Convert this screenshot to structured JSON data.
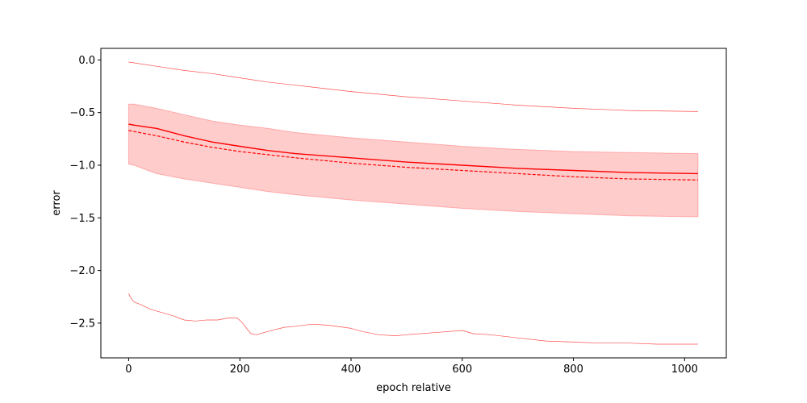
{
  "chart_data": {
    "type": "line",
    "title": "",
    "xlabel": "epoch relative",
    "ylabel": "error",
    "xlim": [
      -50,
      1075
    ],
    "ylim": [
      -2.83,
      0.11
    ],
    "xticks": [
      0,
      200,
      400,
      600,
      800,
      1000
    ],
    "yticks": [
      0.0,
      -0.5,
      -1.0,
      -1.5,
      -2.0,
      -2.5
    ],
    "xtick_labels": [
      "0",
      "200",
      "400",
      "600",
      "800",
      "1000"
    ],
    "ytick_labels": [
      "0.0",
      "−0.5",
      "−1.0",
      "−1.5",
      "−2.0",
      "−2.5"
    ],
    "grid": false,
    "color": "#ff0000",
    "band": {
      "x": [
        0,
        10,
        20,
        50,
        100,
        150,
        200,
        250,
        300,
        400,
        500,
        600,
        700,
        800,
        900,
        1024
      ],
      "upper": [
        -0.42,
        -0.42,
        -0.43,
        -0.46,
        -0.52,
        -0.58,
        -0.62,
        -0.65,
        -0.69,
        -0.74,
        -0.78,
        -0.82,
        -0.85,
        -0.87,
        -0.88,
        -0.89
      ],
      "lower": [
        -0.99,
        -1.0,
        -1.02,
        -1.08,
        -1.13,
        -1.17,
        -1.21,
        -1.25,
        -1.28,
        -1.33,
        -1.37,
        -1.41,
        -1.44,
        -1.46,
        -1.48,
        -1.49
      ]
    },
    "series": [
      {
        "style": "solid",
        "x": [
          0,
          10,
          50,
          100,
          150,
          200,
          250,
          300,
          400,
          500,
          600,
          700,
          800,
          900,
          1024
        ],
        "values": [
          -0.61,
          -0.62,
          -0.65,
          -0.72,
          -0.78,
          -0.82,
          -0.86,
          -0.89,
          -0.93,
          -0.97,
          -1.0,
          -1.03,
          -1.05,
          -1.07,
          -1.08
        ]
      },
      {
        "style": "dashed",
        "x": [
          0,
          10,
          50,
          100,
          150,
          200,
          250,
          300,
          400,
          500,
          600,
          700,
          800,
          900,
          1024
        ],
        "values": [
          -0.67,
          -0.68,
          -0.72,
          -0.78,
          -0.83,
          -0.87,
          -0.9,
          -0.93,
          -0.98,
          -1.02,
          -1.05,
          -1.08,
          -1.11,
          -1.13,
          -1.14
        ]
      },
      {
        "style": "thin",
        "x": [
          0,
          50,
          100,
          150,
          200,
          250,
          300,
          400,
          500,
          600,
          700,
          800,
          900,
          1024
        ],
        "values": [
          -0.02,
          -0.06,
          -0.1,
          -0.13,
          -0.17,
          -0.21,
          -0.24,
          -0.3,
          -0.35,
          -0.39,
          -0.43,
          -0.46,
          -0.48,
          -0.49
        ]
      },
      {
        "style": "thin",
        "x": [
          0,
          5,
          10,
          20,
          40,
          60,
          80,
          100,
          120,
          140,
          160,
          180,
          195,
          205,
          215,
          220,
          230,
          250,
          280,
          300,
          330,
          360,
          400,
          420,
          450,
          480,
          500,
          550,
          600,
          620,
          650,
          700,
          750,
          800,
          850,
          900,
          950,
          1000,
          1024
        ],
        "values": [
          -2.22,
          -2.27,
          -2.3,
          -2.32,
          -2.37,
          -2.4,
          -2.43,
          -2.47,
          -2.48,
          -2.47,
          -2.47,
          -2.45,
          -2.45,
          -2.5,
          -2.57,
          -2.6,
          -2.61,
          -2.58,
          -2.54,
          -2.53,
          -2.51,
          -2.52,
          -2.55,
          -2.58,
          -2.61,
          -2.62,
          -2.61,
          -2.59,
          -2.57,
          -2.6,
          -2.61,
          -2.64,
          -2.67,
          -2.68,
          -2.69,
          -2.69,
          -2.7,
          -2.7,
          -2.7
        ]
      }
    ]
  }
}
